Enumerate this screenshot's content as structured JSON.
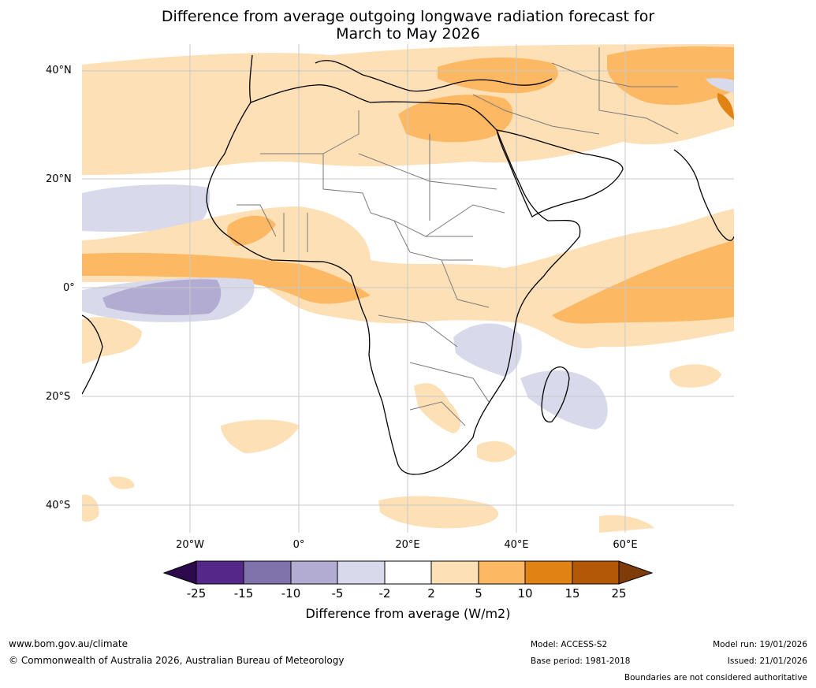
{
  "title": {
    "line1": "Difference from average outgoing longwave radiation forecast for",
    "line2": "March to May 2026"
  },
  "map": {
    "lat_labels": [
      "40°N",
      "20°N",
      "0°",
      "20°S",
      "40°S"
    ],
    "lon_labels": [
      "20°W",
      "0°",
      "20°E",
      "40°E",
      "60°E"
    ]
  },
  "colorbar": {
    "ticks": [
      "-25",
      "-15",
      "-10",
      "-5",
      "-2",
      "2",
      "5",
      "10",
      "15",
      "25"
    ],
    "label": "Difference from average (W/m2)",
    "colors": {
      "below_-25": "#2d0a4e",
      "-25_-15": "#542788",
      "-15_-10": "#8073ac",
      "-10_-5": "#b2abd2",
      "-5_-2": "#d8daeb",
      "-2_2": "#ffffff",
      "2_5": "#fee0b6",
      "5_10": "#fdb863",
      "10_15": "#e08214",
      "15_25": "#b35806",
      "above_25": "#7f3b08"
    }
  },
  "footer": {
    "website": "www.bom.gov.au/climate",
    "copyright": "© Commonwealth of Australia 2026, Australian Bureau of Meteorology",
    "model": "Model: ACCESS-S2",
    "base_period": "Base period: 1981-2018",
    "model_run": "Model run: 19/01/2026",
    "issued": "Issued: 21/01/2026",
    "disclaimer": "Boundaries are not considered authoritative"
  }
}
